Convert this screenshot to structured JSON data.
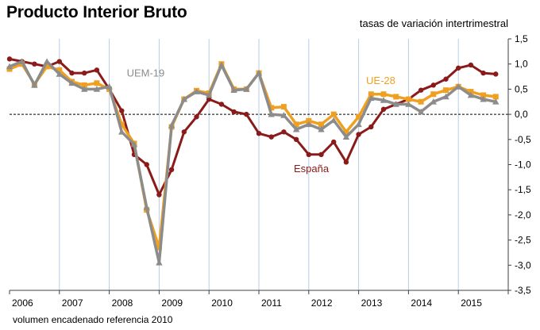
{
  "title": "Producto Interior Bruto",
  "subtitle": "tasas de variación intertrimestral",
  "footnote": "volumen encadenado referencia 2010",
  "chart_data": {
    "type": "line",
    "title": "Producto Interior Bruto",
    "ylabel": "tasas de variación intertrimestral",
    "xlabel": "",
    "ylim": [
      -3.5,
      1.5
    ],
    "yticks": [
      1.5,
      1.0,
      0.5,
      0.0,
      -0.5,
      -1.0,
      -1.5,
      -2.0,
      -2.5,
      -3.0,
      -3.5
    ],
    "ytick_labels": [
      "1,5",
      "1,0",
      "0,5",
      "0,0",
      "-0,5",
      "-1,0",
      "-1,5",
      "-2,0",
      "-2,5",
      "-3,0",
      "-3,5"
    ],
    "xlim": [
      2006,
      2016
    ],
    "xticks": [
      "2006",
      "2007",
      "2008",
      "2009",
      "2010",
      "2011",
      "2012",
      "2013",
      "2014",
      "2015"
    ],
    "x": [
      2006.0,
      2006.25,
      2006.5,
      2006.75,
      2007.0,
      2007.25,
      2007.5,
      2007.75,
      2008.0,
      2008.25,
      2008.5,
      2008.75,
      2009.0,
      2009.25,
      2009.5,
      2009.75,
      2010.0,
      2010.25,
      2010.5,
      2010.75,
      2011.0,
      2011.25,
      2011.5,
      2011.75,
      2012.0,
      2012.25,
      2012.5,
      2012.75,
      2013.0,
      2013.25,
      2013.5,
      2013.75,
      2014.0,
      2014.25,
      2014.5,
      2014.75,
      2015.0,
      2015.25,
      2015.5,
      2015.75
    ],
    "series": [
      {
        "name": "España",
        "color": "#8b1a1a",
        "marker": "circle",
        "values": [
          1.1,
          1.05,
          1.0,
          0.95,
          1.05,
          0.82,
          0.82,
          0.88,
          0.5,
          0.07,
          -0.8,
          -1.0,
          -1.6,
          -1.1,
          -0.35,
          -0.05,
          0.3,
          0.2,
          0.05,
          0.0,
          -0.38,
          -0.45,
          -0.35,
          -0.5,
          -0.8,
          -0.8,
          -0.55,
          -0.95,
          -0.4,
          -0.25,
          0.1,
          0.2,
          0.3,
          0.48,
          0.58,
          0.7,
          0.92,
          0.98,
          0.82,
          0.8
        ]
      },
      {
        "name": "UE-28",
        "color": "#f0a020",
        "marker": "square",
        "values": [
          0.9,
          1.0,
          0.6,
          0.95,
          0.88,
          0.65,
          0.58,
          0.62,
          0.5,
          -0.2,
          -0.58,
          -1.9,
          -2.65,
          -0.25,
          0.3,
          0.47,
          0.42,
          1.0,
          0.5,
          0.5,
          0.82,
          0.13,
          0.15,
          -0.2,
          -0.13,
          -0.2,
          0.0,
          -0.35,
          -0.05,
          0.4,
          0.4,
          0.35,
          0.3,
          0.25,
          0.4,
          0.48,
          0.55,
          0.45,
          0.38,
          0.35
        ]
      },
      {
        "name": "UEM-19",
        "color": "#8c8c8c",
        "marker": "triangle",
        "values": [
          0.95,
          1.05,
          0.58,
          1.05,
          0.8,
          0.62,
          0.5,
          0.5,
          0.55,
          -0.35,
          -0.6,
          -1.85,
          -2.95,
          -0.22,
          0.3,
          0.45,
          0.38,
          0.98,
          0.48,
          0.5,
          0.82,
          0.0,
          -0.02,
          -0.3,
          -0.2,
          -0.3,
          -0.12,
          -0.45,
          -0.2,
          0.32,
          0.28,
          0.2,
          0.2,
          0.05,
          0.25,
          0.35,
          0.55,
          0.38,
          0.3,
          0.25
        ]
      }
    ],
    "annotations": [
      {
        "text": "UEM-19",
        "series": "UEM-19"
      },
      {
        "text": "UE-28",
        "series": "UE-28"
      },
      {
        "text": "España",
        "series": "España"
      }
    ]
  }
}
